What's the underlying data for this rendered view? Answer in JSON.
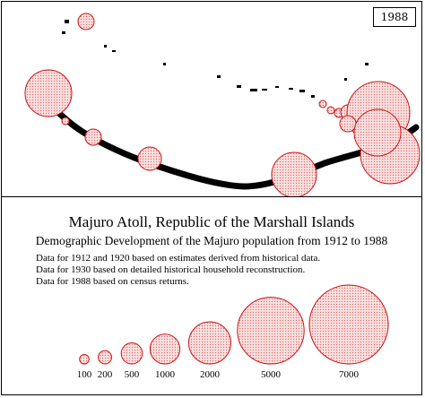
{
  "year": "1988",
  "title": "Majuro Atoll, Republic of the Marshall Islands",
  "subtitle": "Demographic Development of the Majuro population from 1912 to 1988",
  "notes": [
    "Data for 1912 and 1920 based on estimates derived from historical data.",
    "Data for 1930 based on detailed historical household reconstruction.",
    "Data for 1988 based on census returns."
  ],
  "legend": {
    "values": [
      100,
      200,
      500,
      1000,
      2000,
      5000,
      7000
    ],
    "labels": [
      "100",
      "200",
      "500",
      "1000",
      "2000",
      "5000",
      "7000"
    ]
  },
  "colors": {
    "circle_fill": "#f4b8b8",
    "circle_stroke": "#cc1111",
    "land": "#000000"
  }
}
